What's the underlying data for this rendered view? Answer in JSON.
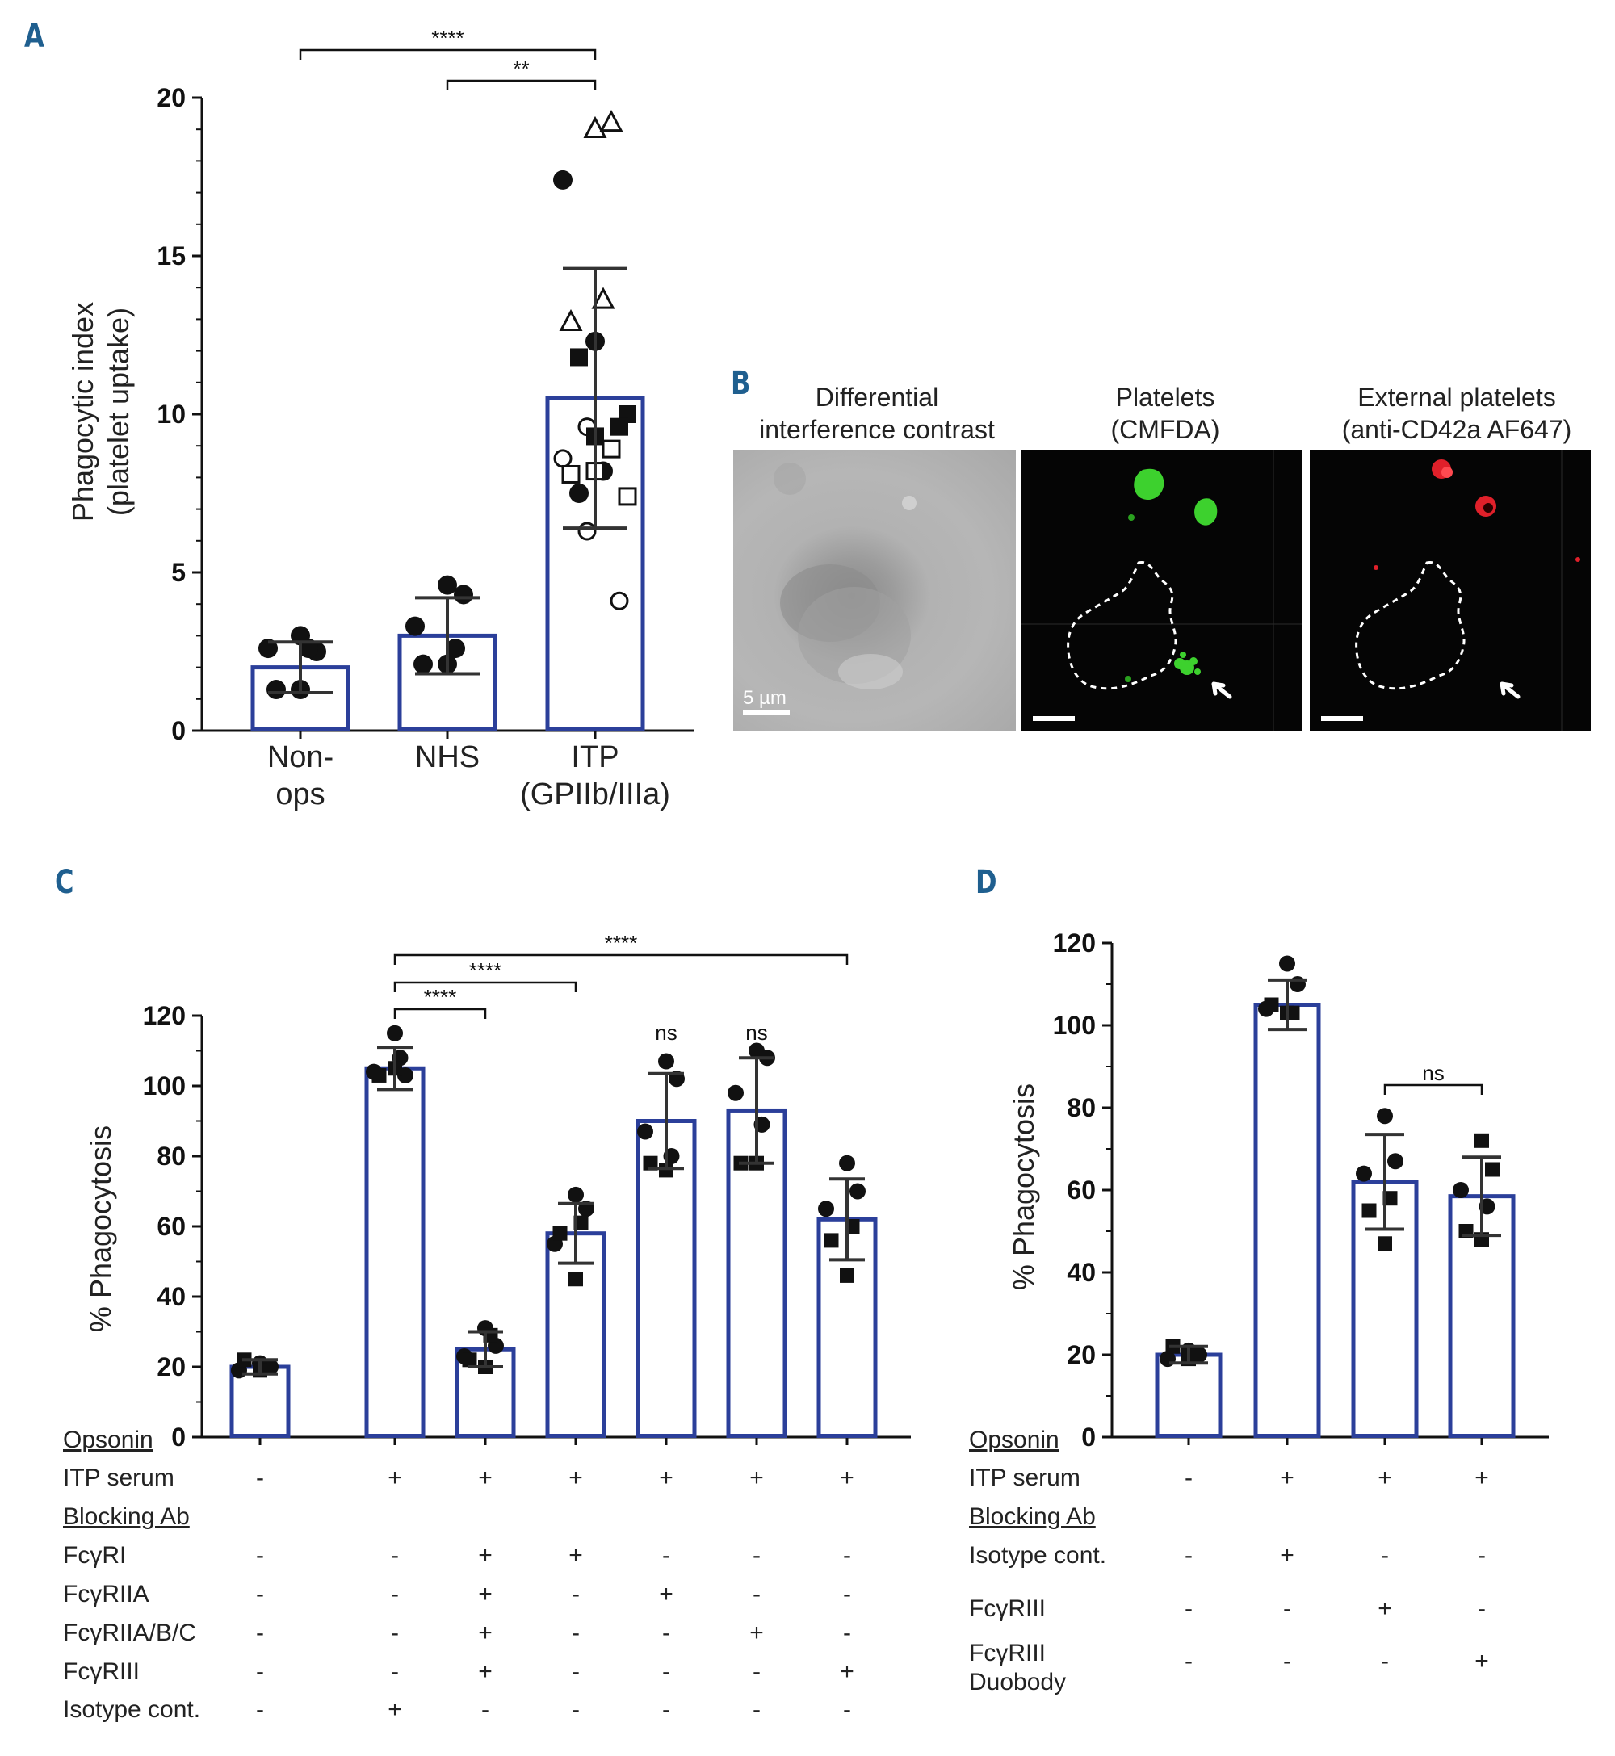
{
  "panels": {
    "A": {
      "letter": "A"
    },
    "B": {
      "letter": "B"
    },
    "C": {
      "letter": "C"
    },
    "D": {
      "letter": "D"
    }
  },
  "chart_data": [
    {
      "id": "A",
      "type": "bar",
      "ylabel_line1": "Phagocytic index",
      "ylabel_line2": "(platelet uptake)",
      "ylim": [
        0,
        20
      ],
      "yticks": [
        "0",
        "5",
        "10",
        "15",
        "20"
      ],
      "categories": [
        "Non-\nops",
        "NHS",
        "ITP\n(GPIIb/IIIa)"
      ],
      "values": [
        2.0,
        3.0,
        10.5
      ],
      "sd": [
        0.8,
        1.2,
        4.1
      ],
      "points": [
        [
          {
            "y": 3.0,
            "m": "circle"
          },
          {
            "y": 2.5,
            "m": "circle"
          },
          {
            "y": 2.6,
            "m": "circle"
          },
          {
            "y": 2.6,
            "m": "circle"
          },
          {
            "y": 1.3,
            "m": "circle"
          },
          {
            "y": 1.3,
            "m": "circle"
          }
        ],
        [
          {
            "y": 4.6,
            "m": "circle"
          },
          {
            "y": 4.3,
            "m": "circle"
          },
          {
            "y": 3.3,
            "m": "circle"
          },
          {
            "y": 2.6,
            "m": "circle"
          },
          {
            "y": 2.1,
            "m": "circle"
          },
          {
            "y": 2.1,
            "m": "circle"
          }
        ],
        [
          {
            "y": 19.0,
            "m": "triangle-open"
          },
          {
            "y": 19.2,
            "m": "triangle-open"
          },
          {
            "y": 17.4,
            "m": "circle"
          },
          {
            "y": 13.6,
            "m": "triangle-open"
          },
          {
            "y": 12.9,
            "m": "triangle-open"
          },
          {
            "y": 12.3,
            "m": "circle"
          },
          {
            "y": 11.8,
            "m": "square"
          },
          {
            "y": 10.0,
            "m": "square"
          },
          {
            "y": 9.6,
            "m": "circle-open"
          },
          {
            "y": 9.6,
            "m": "square"
          },
          {
            "y": 9.3,
            "m": "square"
          },
          {
            "y": 8.9,
            "m": "square-open"
          },
          {
            "y": 8.6,
            "m": "circle-open"
          },
          {
            "y": 8.2,
            "m": "circle"
          },
          {
            "y": 8.1,
            "m": "square-open"
          },
          {
            "y": 8.2,
            "m": "square-open"
          },
          {
            "y": 7.5,
            "m": "circle"
          },
          {
            "y": 7.4,
            "m": "square-open"
          },
          {
            "y": 6.3,
            "m": "circle-open"
          },
          {
            "y": 4.1,
            "m": "circle-open"
          }
        ]
      ],
      "brackets": [
        {
          "from": 0,
          "to": 2,
          "label": "****"
        },
        {
          "from": 1,
          "to": 2,
          "label": "**"
        }
      ]
    },
    {
      "id": "C",
      "type": "bar",
      "ylabel": "% Phagocytosis",
      "ylim": [
        0,
        120
      ],
      "yticks": [
        "0",
        "20",
        "40",
        "60",
        "80",
        "100",
        "120"
      ],
      "values": [
        20,
        105,
        25,
        58,
        90,
        93,
        62
      ],
      "sd": [
        2,
        6,
        5,
        8.5,
        13.5,
        15,
        11.5
      ],
      "points": [
        [
          {
            "y": 21,
            "m": "circle"
          },
          {
            "y": 20,
            "m": "circle"
          },
          {
            "y": 19,
            "m": "circle"
          },
          {
            "y": 20,
            "m": "square"
          },
          {
            "y": 22,
            "m": "square"
          },
          {
            "y": 19,
            "m": "square"
          }
        ],
        [
          {
            "y": 115,
            "m": "circle"
          },
          {
            "y": 103,
            "m": "circle"
          },
          {
            "y": 104,
            "m": "circle"
          },
          {
            "y": 108,
            "m": "circle"
          },
          {
            "y": 103,
            "m": "square"
          },
          {
            "y": 105,
            "m": "square"
          }
        ],
        [
          {
            "y": 31,
            "m": "circle"
          },
          {
            "y": 26,
            "m": "circle"
          },
          {
            "y": 23,
            "m": "circle"
          },
          {
            "y": 29,
            "m": "square"
          },
          {
            "y": 22,
            "m": "square"
          },
          {
            "y": 20,
            "m": "square"
          }
        ],
        [
          {
            "y": 69,
            "m": "circle"
          },
          {
            "y": 65,
            "m": "circle"
          },
          {
            "y": 55,
            "m": "circle"
          },
          {
            "y": 61,
            "m": "square"
          },
          {
            "y": 58,
            "m": "square"
          },
          {
            "y": 45,
            "m": "square"
          }
        ],
        [
          {
            "y": 107,
            "m": "circle"
          },
          {
            "y": 102,
            "m": "circle"
          },
          {
            "y": 87,
            "m": "circle"
          },
          {
            "y": 80,
            "m": "circle"
          },
          {
            "y": 78,
            "m": "square"
          },
          {
            "y": 76,
            "m": "square"
          }
        ],
        [
          {
            "y": 110,
            "m": "circle"
          },
          {
            "y": 108,
            "m": "circle"
          },
          {
            "y": 98,
            "m": "circle"
          },
          {
            "y": 89,
            "m": "circle"
          },
          {
            "y": 78,
            "m": "square"
          },
          {
            "y": 78,
            "m": "square"
          }
        ],
        [
          {
            "y": 78,
            "m": "circle"
          },
          {
            "y": 70,
            "m": "circle"
          },
          {
            "y": 65,
            "m": "circle"
          },
          {
            "y": 60,
            "m": "square"
          },
          {
            "y": 56,
            "m": "square"
          },
          {
            "y": 46,
            "m": "square"
          }
        ]
      ],
      "brackets": [
        {
          "from": 1,
          "to": 2,
          "label": "****"
        },
        {
          "from": 1,
          "to": 3,
          "label": "****"
        },
        {
          "from": 1,
          "to": 6,
          "label": "****"
        }
      ],
      "ns_labels": [
        {
          "bar": 4,
          "label": "ns"
        },
        {
          "bar": 5,
          "label": "ns"
        }
      ],
      "table": [
        {
          "label": "Opsonin",
          "header": true,
          "signs": []
        },
        {
          "label": "ITP serum",
          "header": false,
          "signs": [
            "-",
            "+",
            "+",
            "+",
            "+",
            "+",
            "+"
          ]
        },
        {
          "label": "Blocking Ab",
          "header": true,
          "signs": []
        },
        {
          "label": "FcγRI",
          "header": false,
          "signs": [
            "-",
            "-",
            "+",
            "+",
            "-",
            "-",
            "-"
          ]
        },
        {
          "label": "FcγRIIA",
          "header": false,
          "signs": [
            "-",
            "-",
            "+",
            "-",
            "+",
            "-",
            "-"
          ]
        },
        {
          "label": "FcγRIIA/B/C",
          "header": false,
          "signs": [
            "-",
            "-",
            "+",
            "-",
            "-",
            "+",
            "-"
          ]
        },
        {
          "label": "FcγRIII",
          "header": false,
          "signs": [
            "-",
            "-",
            "+",
            "-",
            "-",
            "-",
            "+"
          ]
        },
        {
          "label": "Isotype cont.",
          "header": false,
          "signs": [
            "-",
            "+",
            "-",
            "-",
            "-",
            "-",
            "-"
          ]
        }
      ]
    },
    {
      "id": "D",
      "type": "bar",
      "ylabel": "% Phagocytosis",
      "ylim": [
        0,
        120
      ],
      "yticks": [
        "0",
        "20",
        "40",
        "60",
        "80",
        "100",
        "120"
      ],
      "values": [
        20,
        105,
        62,
        58.5
      ],
      "sd": [
        2,
        6,
        11.5,
        9.5
      ],
      "points": [
        [
          {
            "y": 21,
            "m": "circle"
          },
          {
            "y": 20,
            "m": "circle"
          },
          {
            "y": 19,
            "m": "circle"
          },
          {
            "y": 20,
            "m": "square"
          },
          {
            "y": 22,
            "m": "square"
          },
          {
            "y": 19,
            "m": "square"
          }
        ],
        [
          {
            "y": 115,
            "m": "circle"
          },
          {
            "y": 110,
            "m": "circle"
          },
          {
            "y": 104,
            "m": "circle"
          },
          {
            "y": 103,
            "m": "square"
          },
          {
            "y": 105,
            "m": "square"
          },
          {
            "y": 103,
            "m": "square"
          }
        ],
        [
          {
            "y": 78,
            "m": "circle"
          },
          {
            "y": 67,
            "m": "circle"
          },
          {
            "y": 64,
            "m": "circle"
          },
          {
            "y": 58,
            "m": "square"
          },
          {
            "y": 55,
            "m": "square"
          },
          {
            "y": 47,
            "m": "square"
          }
        ],
        [
          {
            "y": 72,
            "m": "square"
          },
          {
            "y": 65,
            "m": "square"
          },
          {
            "y": 60,
            "m": "circle"
          },
          {
            "y": 56,
            "m": "circle"
          },
          {
            "y": 50,
            "m": "square"
          },
          {
            "y": 48,
            "m": "square"
          }
        ]
      ],
      "brackets": [
        {
          "from": 2,
          "to": 3,
          "label": "ns"
        }
      ],
      "table": [
        {
          "label": "Opsonin",
          "header": true,
          "signs": []
        },
        {
          "label": "ITP serum",
          "header": false,
          "signs": [
            "-",
            "+",
            "+",
            "+"
          ]
        },
        {
          "label": "Blocking Ab",
          "header": true,
          "signs": []
        },
        {
          "label": "Isotype cont.",
          "header": false,
          "signs": [
            "-",
            "+",
            "-",
            "-"
          ]
        },
        {
          "label": "FcγRIII",
          "header": false,
          "signs": [
            "-",
            "-",
            "+",
            "-"
          ]
        },
        {
          "label": "FcγRIII\nDuobody",
          "header": false,
          "signs": [
            "-",
            "-",
            "-",
            "+"
          ]
        }
      ]
    }
  ],
  "panel_b": {
    "images": [
      {
        "title": "Differential\ninterference contrast",
        "scalebar_label": "5 µm"
      },
      {
        "title": "Platelets\n(CMFDA)"
      },
      {
        "title": "External platelets\n(anti-CD42a AF647)"
      }
    ]
  },
  "colors": {
    "bar_outline": "#2b3f9a",
    "ink": "#111111",
    "panel_letter": "#1f5f8f",
    "green_fluor": "#3dd12e",
    "red_fluor": "#e0202a"
  }
}
